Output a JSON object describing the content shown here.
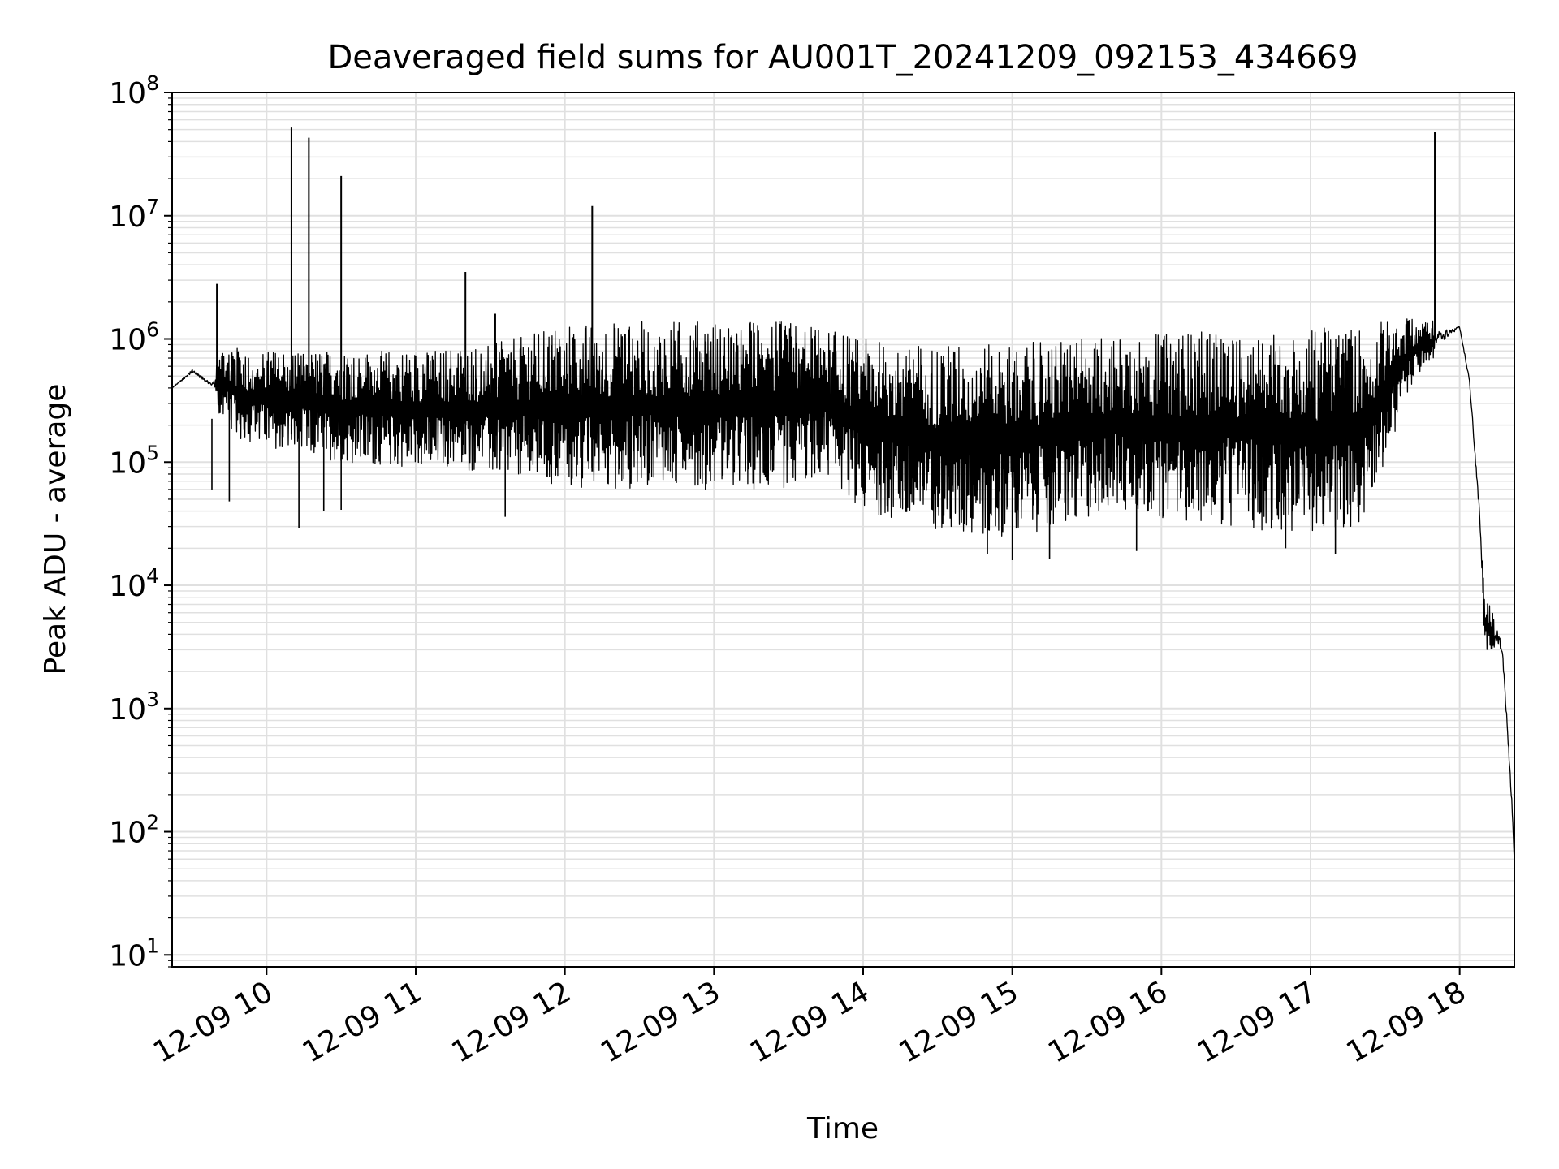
{
  "chart_data": {
    "type": "line",
    "title": "Deaveraged field sums for AU001T_20241209_092153_434669",
    "xlabel": "Time",
    "ylabel": "Peak ADU - average",
    "xscale": "time",
    "yscale": "log",
    "xlim": [
      "12-09 09:22",
      "12-09 18:22"
    ],
    "ylim": [
      8,
      100000000
    ],
    "grid": true,
    "line_color": "#000000",
    "grid_color": "#e0e0e0",
    "x_ticks": [
      "12-09 10",
      "12-09 11",
      "12-09 12",
      "12-09 13",
      "12-09 14",
      "12-09 15",
      "12-09 16",
      "12-09 17",
      "12-09 18"
    ],
    "y_ticks": [
      {
        "base": "10",
        "exp": "1",
        "value": 10
      },
      {
        "base": "10",
        "exp": "2",
        "value": 100
      },
      {
        "base": "10",
        "exp": "3",
        "value": 1000
      },
      {
        "base": "10",
        "exp": "4",
        "value": 10000
      },
      {
        "base": "10",
        "exp": "5",
        "value": 100000
      },
      {
        "base": "10",
        "exp": "6",
        "value": 1000000
      },
      {
        "base": "10",
        "exp": "7",
        "value": 10000000
      },
      {
        "base": "10",
        "exp": "8",
        "value": 100000000
      }
    ],
    "series": [
      {
        "envelope_x": [
          "12-09 09:22",
          "12-09 09:30",
          "12-09 09:38",
          "12-09 09:42",
          "12-09 09:50",
          "12-09 10:10",
          "12-09 10:30",
          "12-09 11:00",
          "12-09 11:30",
          "12-09 12:00",
          "12-09 12:30",
          "12-09 13:00",
          "12-09 13:30",
          "12-09 13:45",
          "12-09 14:00",
          "12-09 14:20",
          "12-09 14:40",
          "12-09 15:00",
          "12-09 15:20",
          "12-09 15:40",
          "12-09 16:00",
          "12-09 16:30",
          "12-09 17:00",
          "12-09 17:20",
          "12-09 17:30",
          "12-09 17:40",
          "12-09 17:50",
          "12-09 18:00",
          "12-09 18:04",
          "12-09 18:08",
          "12-09 18:10",
          "12-09 18:12",
          "12-09 18:14",
          "12-09 18:17",
          "12-09 18:19",
          "12-09 18:21",
          "12-09 18:22"
        ],
        "envelope_upper": [
          400000,
          600000,
          450000,
          1000000,
          800000,
          800000,
          800000,
          800000,
          900000,
          1300000,
          1400000,
          1400000,
          1400000,
          1200000,
          1000000,
          900000,
          900000,
          900000,
          1000000,
          1100000,
          1100000,
          1200000,
          1200000,
          1300000,
          1400000,
          1500000,
          1400000,
          1300000,
          500000,
          50000,
          8000,
          7000,
          6000,
          4000,
          1000,
          200,
          60
        ],
        "envelope_lower": [
          400000,
          500000,
          400000,
          200000,
          150000,
          120000,
          100000,
          90000,
          80000,
          60000,
          60000,
          60000,
          60000,
          80000,
          40000,
          30000,
          25000,
          25000,
          30000,
          40000,
          35000,
          30000,
          25000,
          30000,
          100000,
          400000,
          700000,
          1200000,
          400000,
          30000,
          3000,
          3000,
          3000,
          2500,
          600,
          150,
          55
        ],
        "spikes": [
          {
            "x": "12-09 09:40",
            "y": 2800000
          },
          {
            "x": "12-09 10:10",
            "y": 52000000
          },
          {
            "x": "12-09 10:17",
            "y": 43000000
          },
          {
            "x": "12-09 10:30",
            "y": 21000000
          },
          {
            "x": "12-09 11:20",
            "y": 3500000
          },
          {
            "x": "12-09 11:32",
            "y": 1600000
          },
          {
            "x": "12-09 12:11",
            "y": 12000000
          },
          {
            "x": "12-09 17:50",
            "y": 48000000
          }
        ],
        "dips": [
          {
            "x": "12-09 09:38",
            "y": 60000
          },
          {
            "x": "12-09 09:45",
            "y": 48000
          },
          {
            "x": "12-09 10:13",
            "y": 29000
          },
          {
            "x": "12-09 10:23",
            "y": 40000
          },
          {
            "x": "12-09 10:30",
            "y": 41000
          },
          {
            "x": "12-09 11:36",
            "y": 36000
          },
          {
            "x": "12-09 14:50",
            "y": 18000
          },
          {
            "x": "12-09 15:00",
            "y": 16000
          },
          {
            "x": "12-09 15:15",
            "y": 16500
          },
          {
            "x": "12-09 15:50",
            "y": 19000
          },
          {
            "x": "12-09 16:50",
            "y": 20000
          },
          {
            "x": "12-09 17:10",
            "y": 18000
          }
        ]
      }
    ]
  }
}
